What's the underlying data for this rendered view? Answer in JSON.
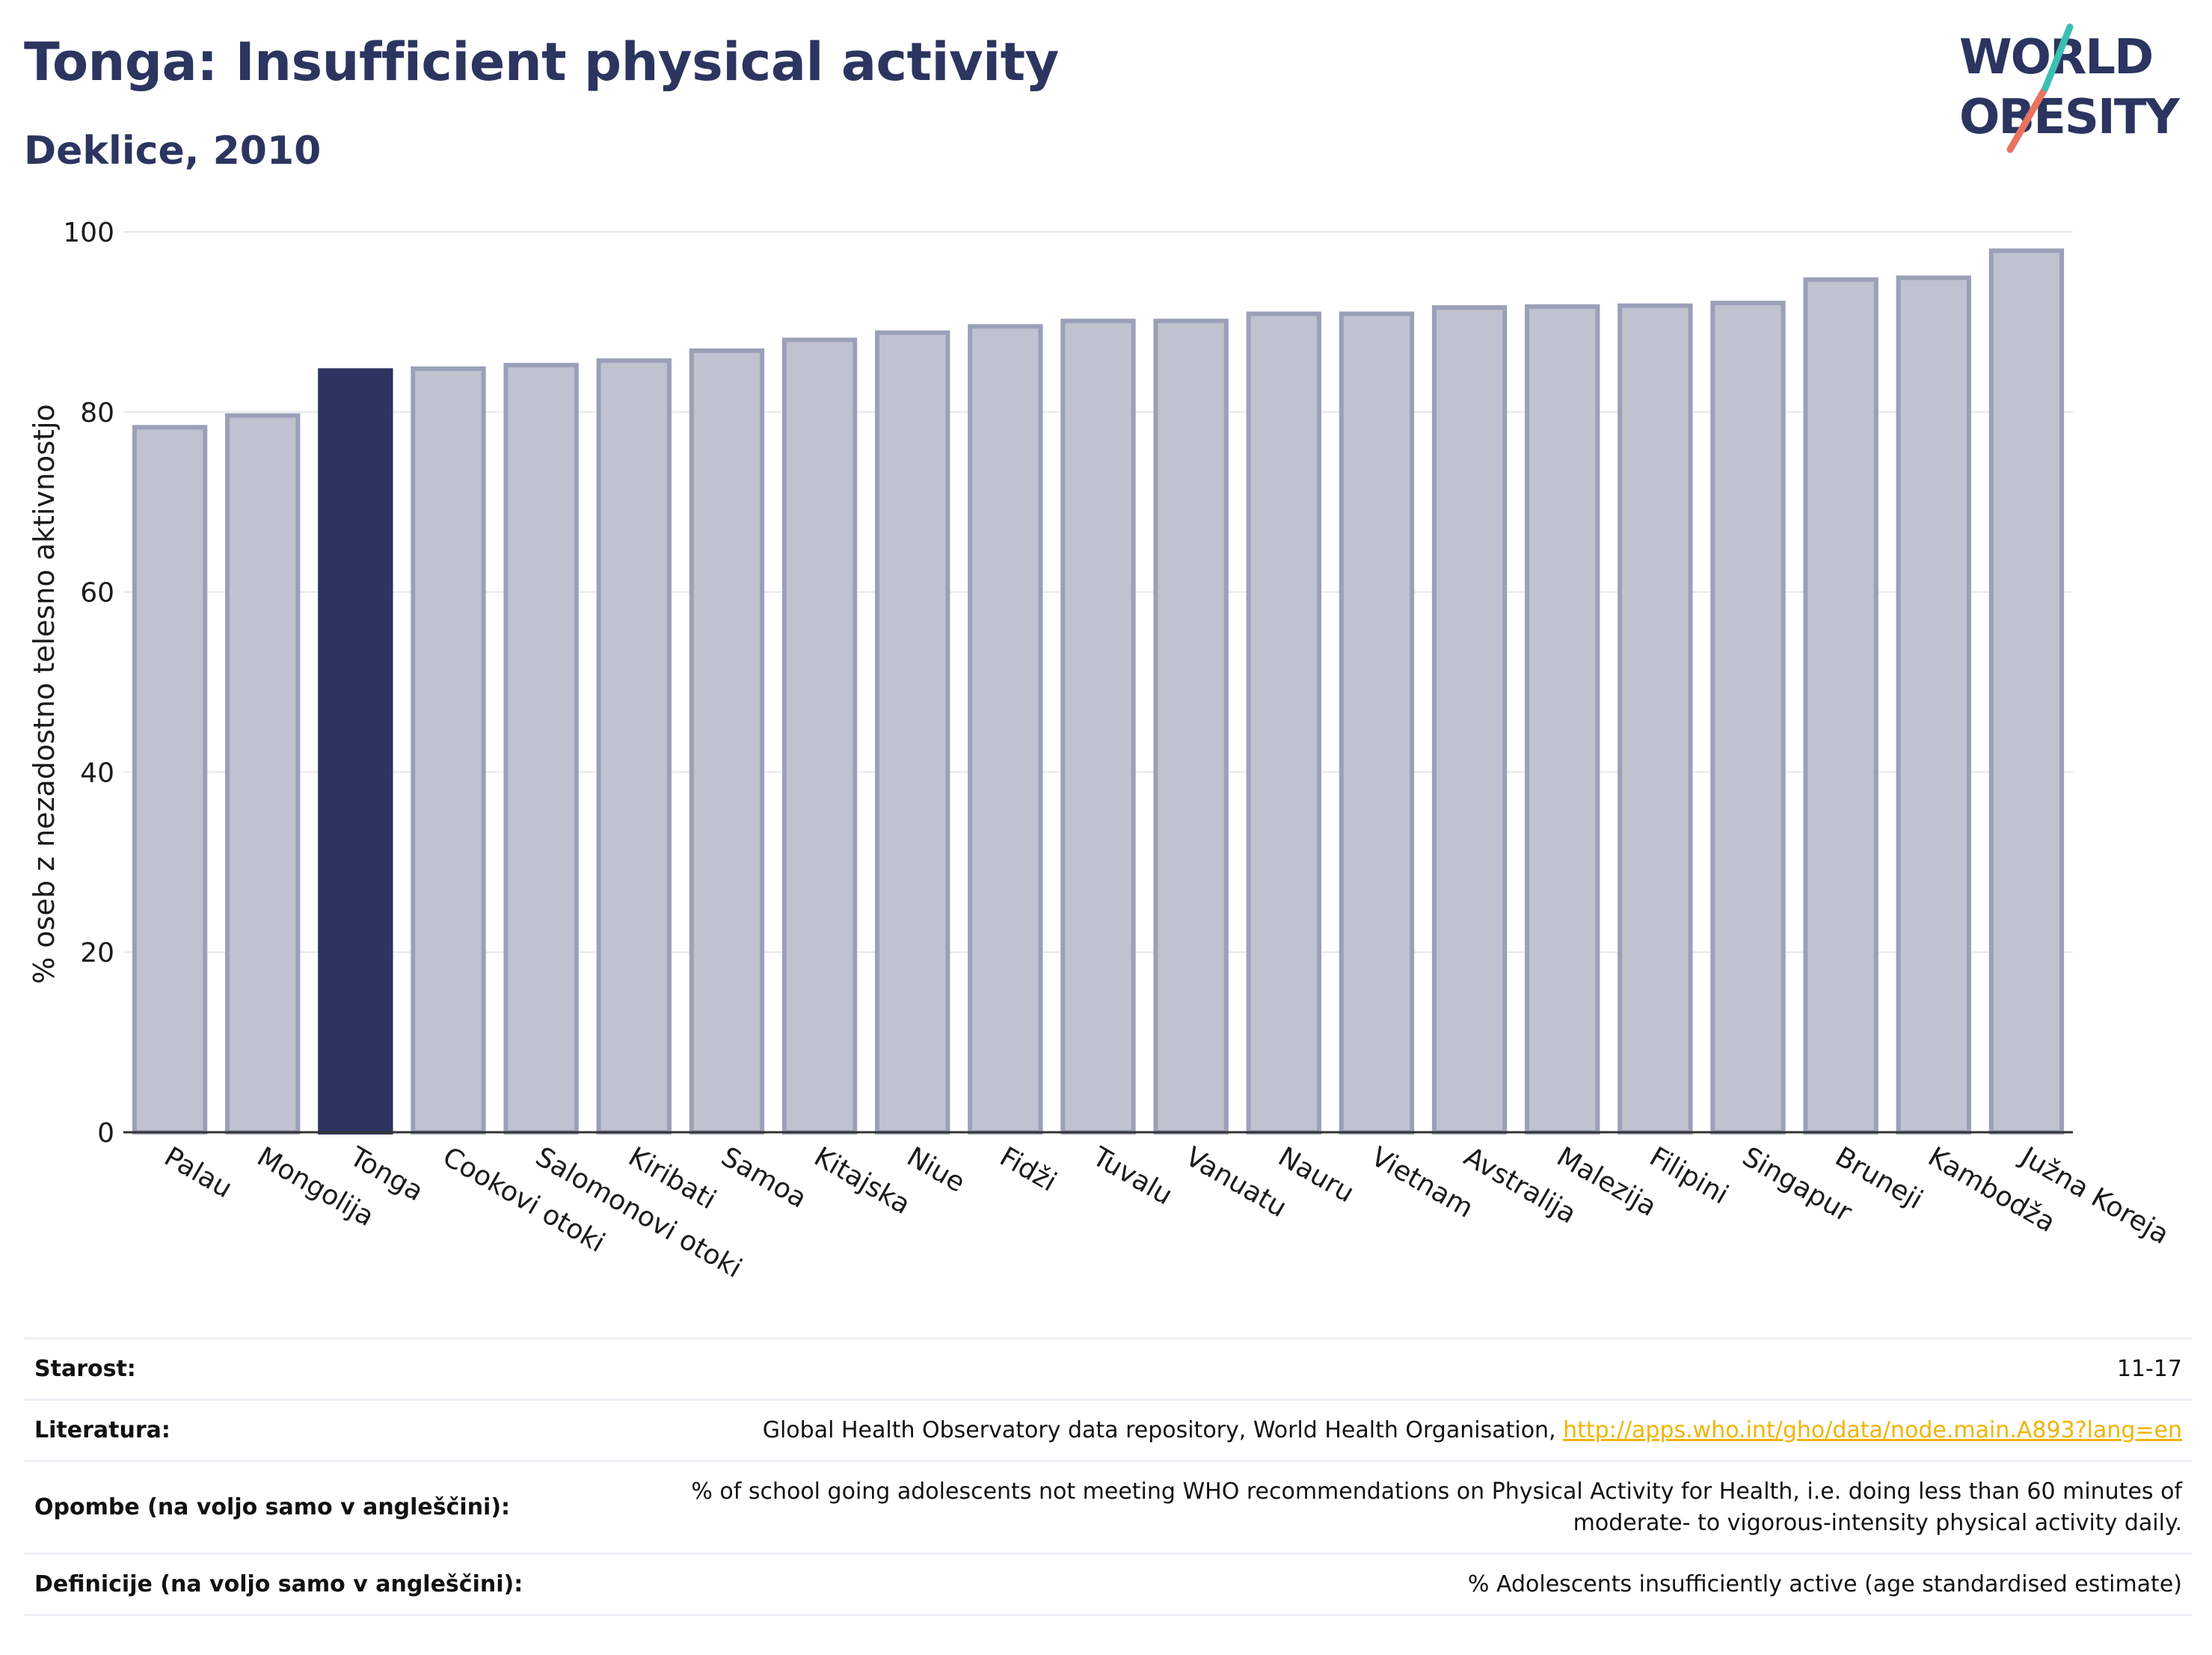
{
  "header": {
    "title": "Tonga: Insufficient physical activity",
    "subtitle": "Deklice, 2010"
  },
  "logo": {
    "line1": "WORLD",
    "line2": "OBESITY"
  },
  "colors": {
    "highlight": "#2b3560",
    "bar": "#bfc3d0",
    "bar_border": "#9aa0b8",
    "title": "#2b3560",
    "link": "#f0b400"
  },
  "chart_data": {
    "type": "bar",
    "ylabel": "% oseb z nezadostno telesno aktivnostjo",
    "xlabel": "",
    "ylim": [
      0,
      100
    ],
    "yticks": [
      0,
      20,
      40,
      60,
      80,
      100
    ],
    "grid": true,
    "categories": [
      "Palau",
      "Mongolija",
      "Tonga",
      "Cookovi otoki",
      "Salomonovi otoki",
      "Kiribati",
      "Samoa",
      "Kitajska",
      "Niue",
      "Fidži",
      "Tuvalu",
      "Vanuatu",
      "Nauru",
      "Vietnam",
      "Avstralija",
      "Malezija",
      "Filipini",
      "Singapur",
      "Bruneji",
      "Kambodža",
      "Južna Koreja"
    ],
    "values": [
      78.3,
      79.6,
      84.6,
      84.8,
      85.2,
      85.7,
      86.8,
      88.0,
      88.8,
      89.5,
      90.1,
      90.1,
      90.9,
      90.9,
      91.6,
      91.7,
      91.8,
      92.1,
      94.7,
      94.9,
      97.9
    ],
    "highlight": "Tonga"
  },
  "metadata": {
    "rows": [
      {
        "key": "Starost:",
        "value": "11-17"
      },
      {
        "key": "Literatura:",
        "value": "Global Health Observatory data repository, World Health Organisation, ",
        "link": "http://apps.who.int/gho/data/node.main.A893?lang=en"
      },
      {
        "key": "Opombe (na voljo samo v angleščini):",
        "value": "% of school going adolescents not meeting WHO recommendations on Physical Activity for Health, i.e. doing less than 60 minutes of",
        "value2": "moderate- to vigorous-intensity physical activity daily."
      },
      {
        "key": "Definicije (na voljo samo v angleščini):",
        "value": "% Adolescents insufficiently active (age standardised estimate)"
      }
    ]
  }
}
